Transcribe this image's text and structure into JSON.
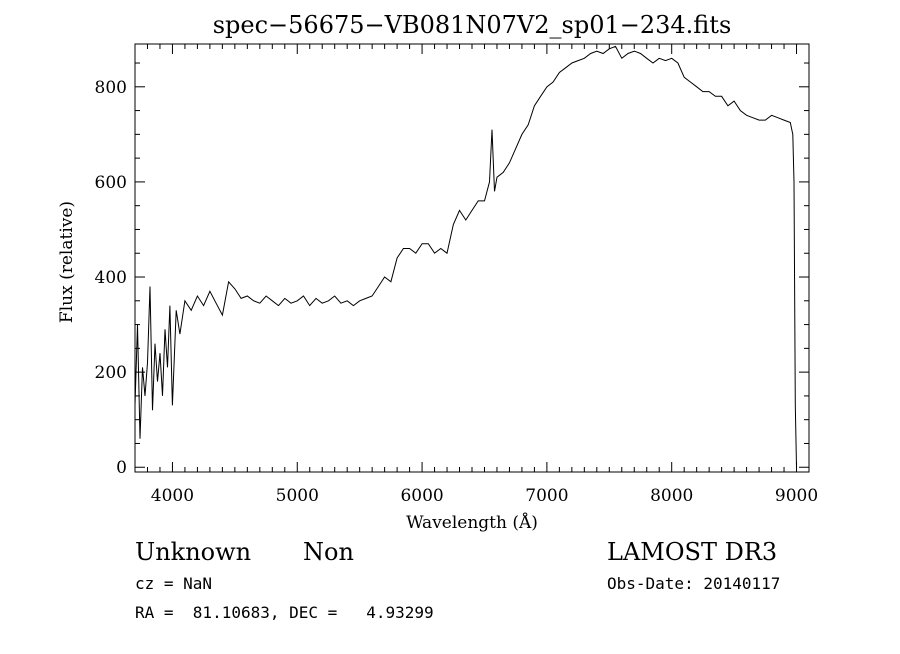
{
  "chart_data": {
    "type": "line",
    "title": "spec−56675−VB081N07V2_sp01−234.fits",
    "xlabel": "Wavelength (Å)",
    "ylabel": "Flux (relative)",
    "xlim": [
      3700,
      9100
    ],
    "ylim": [
      -10,
      890
    ],
    "xticks": [
      4000,
      5000,
      6000,
      7000,
      8000,
      9000
    ],
    "yticks": [
      0,
      200,
      400,
      600,
      800
    ],
    "grid": false,
    "series": [
      {
        "name": "flux",
        "x": [
          3700,
          3720,
          3740,
          3760,
          3780,
          3800,
          3820,
          3840,
          3860,
          3880,
          3900,
          3920,
          3940,
          3960,
          3980,
          4000,
          4030,
          4060,
          4100,
          4150,
          4200,
          4250,
          4300,
          4350,
          4400,
          4450,
          4500,
          4550,
          4600,
          4650,
          4700,
          4750,
          4800,
          4850,
          4900,
          4950,
          5000,
          5050,
          5100,
          5150,
          5200,
          5250,
          5300,
          5350,
          5400,
          5450,
          5500,
          5550,
          5600,
          5650,
          5700,
          5750,
          5800,
          5850,
          5900,
          5950,
          6000,
          6050,
          6100,
          6150,
          6200,
          6250,
          6300,
          6350,
          6400,
          6450,
          6500,
          6540,
          6560,
          6580,
          6600,
          6650,
          6700,
          6750,
          6800,
          6850,
          6900,
          6950,
          7000,
          7050,
          7100,
          7150,
          7200,
          7250,
          7300,
          7350,
          7400,
          7450,
          7500,
          7550,
          7600,
          7650,
          7700,
          7750,
          7800,
          7850,
          7900,
          7950,
          8000,
          8050,
          8100,
          8150,
          8200,
          8250,
          8300,
          8350,
          8400,
          8450,
          8500,
          8550,
          8600,
          8650,
          8700,
          8750,
          8800,
          8850,
          8900,
          8950,
          8970,
          8980,
          8990,
          9000
        ],
        "y": [
          130,
          300,
          60,
          210,
          150,
          220,
          380,
          120,
          260,
          180,
          240,
          150,
          290,
          210,
          340,
          130,
          330,
          280,
          350,
          330,
          360,
          340,
          370,
          345,
          320,
          390,
          375,
          355,
          360,
          350,
          345,
          360,
          350,
          340,
          355,
          345,
          350,
          360,
          340,
          355,
          345,
          350,
          360,
          345,
          350,
          340,
          350,
          355,
          360,
          380,
          400,
          390,
          440,
          460,
          460,
          450,
          470,
          470,
          450,
          460,
          450,
          510,
          540,
          520,
          540,
          560,
          560,
          600,
          710,
          580,
          610,
          620,
          640,
          670,
          700,
          720,
          760,
          780,
          800,
          810,
          830,
          840,
          850,
          855,
          860,
          870,
          875,
          870,
          880,
          885,
          860,
          870,
          875,
          870,
          860,
          850,
          860,
          855,
          860,
          850,
          820,
          810,
          800,
          790,
          790,
          780,
          780,
          760,
          770,
          750,
          740,
          735,
          730,
          730,
          740,
          735,
          730,
          725,
          700,
          600,
          130,
          0
        ]
      }
    ],
    "info": {
      "object_class": "Unknown",
      "object_subclass": "Non",
      "survey": "LAMOST DR3",
      "cz": "cz = NaN",
      "obs_date": "Obs-Date: 20140117",
      "radec": "RA =  81.10683, DEC =   4.93299"
    }
  }
}
